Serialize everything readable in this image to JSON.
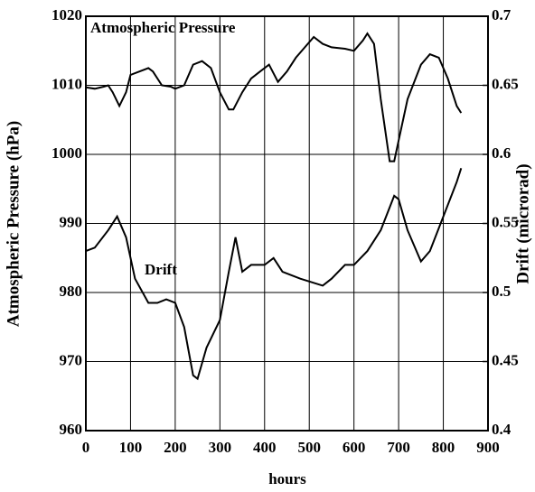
{
  "chart_data": {
    "type": "line",
    "xlabel": "hours",
    "ylabel": "Atmospheric Pressure (hPa)",
    "y2label": "Drift (microrad)",
    "xlim": [
      0,
      900
    ],
    "xticks": [
      0,
      100,
      200,
      300,
      400,
      500,
      600,
      700,
      800,
      900
    ],
    "ylim": [
      960,
      1020
    ],
    "yticks": [
      960,
      970,
      980,
      990,
      1000,
      1010,
      1020
    ],
    "y2lim": [
      0.4,
      0.7
    ],
    "y2ticks": [
      0.4,
      0.45,
      0.5,
      0.55,
      0.6,
      0.65,
      0.7
    ],
    "grid": true,
    "series": [
      {
        "name": "Atmospheric Pressure",
        "color": "#000000",
        "x": [
          0,
          20,
          40,
          50,
          60,
          75,
          90,
          100,
          120,
          140,
          150,
          170,
          190,
          200,
          220,
          240,
          260,
          280,
          300,
          320,
          330,
          350,
          370,
          390,
          410,
          430,
          450,
          470,
          490,
          510,
          530,
          550,
          580,
          600,
          620,
          630,
          645,
          660,
          680,
          690,
          700,
          720,
          750,
          770,
          790,
          810,
          830,
          840
        ],
        "values": [
          1009.7,
          1009.5,
          1009.8,
          1010,
          1009,
          1007,
          1009,
          1011.5,
          1012,
          1012.5,
          1012,
          1010,
          1009.8,
          1009.5,
          1010,
          1013,
          1013.5,
          1012.5,
          1009,
          1006.5,
          1006.5,
          1009,
          1011,
          1012,
          1013,
          1010.5,
          1012,
          1014,
          1015.5,
          1017,
          1016,
          1015.5,
          1015.3,
          1015,
          1016.5,
          1017.5,
          1016,
          1008,
          999,
          999,
          1002,
          1008,
          1013,
          1014.5,
          1014,
          1011,
          1007,
          1006
        ]
      },
      {
        "name": "Drift",
        "color": "#000000",
        "axis": "y2",
        "x": [
          0,
          20,
          50,
          70,
          90,
          110,
          140,
          160,
          180,
          200,
          220,
          240,
          250,
          270,
          300,
          320,
          335,
          350,
          370,
          400,
          420,
          440,
          480,
          530,
          550,
          580,
          600,
          630,
          660,
          690,
          700,
          720,
          750,
          770,
          800,
          830,
          840
        ],
        "values": [
          0.53,
          0.5325,
          0.545,
          0.555,
          0.54,
          0.51,
          0.4925,
          0.4925,
          0.495,
          0.4925,
          0.475,
          0.44,
          0.4375,
          0.46,
          0.48,
          0.515,
          0.54,
          0.515,
          0.52,
          0.52,
          0.525,
          0.515,
          0.51,
          0.505,
          0.51,
          0.52,
          0.52,
          0.53,
          0.545,
          0.57,
          0.5675,
          0.545,
          0.5225,
          0.53,
          0.555,
          0.58,
          0.59
        ]
      }
    ]
  }
}
